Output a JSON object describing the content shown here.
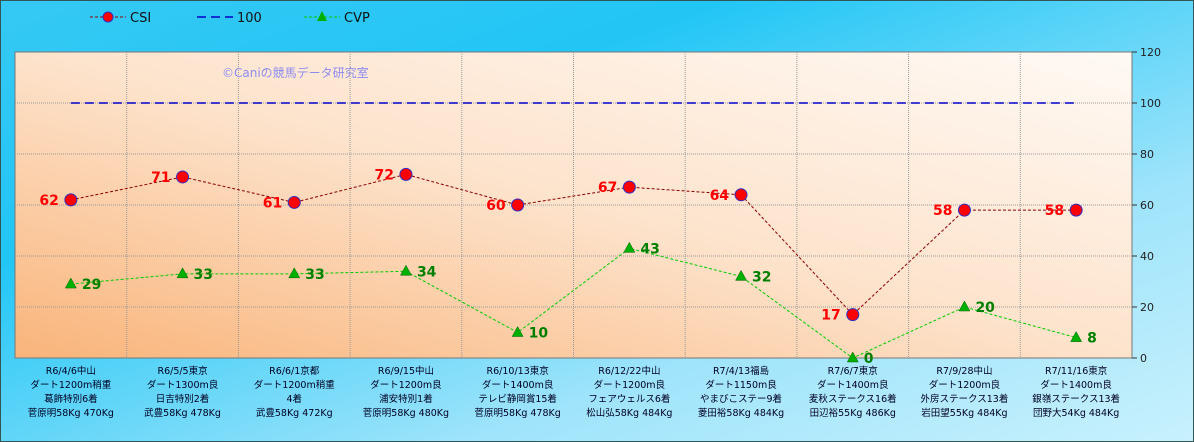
{
  "watermark": "©Caniの競馬データ研究室",
  "chart_data": {
    "type": "line",
    "categories": [
      [
        "R6/4/6中山",
        "ダート1200m稍重",
        "葛飾特別6着",
        "菅原明58Kg 470Kg"
      ],
      [
        "R6/5/5東京",
        "ダート1300m良",
        "日吉特別2着",
        "武豊58Kg 478Kg"
      ],
      [
        "R6/6/1京都",
        "ダート1200m稍重",
        "4着",
        "武豊58Kg 472Kg"
      ],
      [
        "R6/9/15中山",
        "ダート1200m良",
        "浦安特別1着",
        "菅原明58Kg 480Kg"
      ],
      [
        "R6/10/13東京",
        "ダート1400m良",
        "テレビ静岡賞15着",
        "菅原明58Kg 478Kg"
      ],
      [
        "R6/12/22中山",
        "ダート1200m良",
        "フェアウェルス6着",
        "松山弘58Kg 484Kg"
      ],
      [
        "R7/4/13福島",
        "ダート1150m良",
        "やまびこステー9着",
        "菱田裕58Kg 484Kg"
      ],
      [
        "R7/6/7東京",
        "ダート1400m良",
        "麦秋ステークス16着",
        "田辺裕55Kg 486Kg"
      ],
      [
        "R7/9/28中山",
        "ダート1200m良",
        "外房ステークス13着",
        "岩田望55Kg 484Kg"
      ],
      [
        "R7/11/16東京",
        "ダート1400m良",
        "銀嶺ステークス13着",
        "団野大54Kg 484Kg"
      ]
    ],
    "series": [
      {
        "name": "CSI",
        "values": [
          62,
          71,
          61,
          72,
          60,
          67,
          64,
          17,
          58,
          58
        ],
        "color": "#8b0000",
        "marker_color": "#ff0000"
      },
      {
        "name": "100",
        "values": [
          100,
          100,
          100,
          100,
          100,
          100,
          100,
          100,
          100,
          100
        ],
        "color": "#0000cc"
      },
      {
        "name": "CVP",
        "values": [
          29,
          33,
          33,
          34,
          10,
          43,
          32,
          0,
          20,
          8
        ],
        "color": "#00cc00"
      }
    ],
    "yaxis": {
      "min": 0,
      "max": 120,
      "ticks": [
        0,
        20,
        40,
        60,
        80,
        100,
        120
      ],
      "position": "right"
    },
    "grid": true,
    "legend": "top-left"
  }
}
